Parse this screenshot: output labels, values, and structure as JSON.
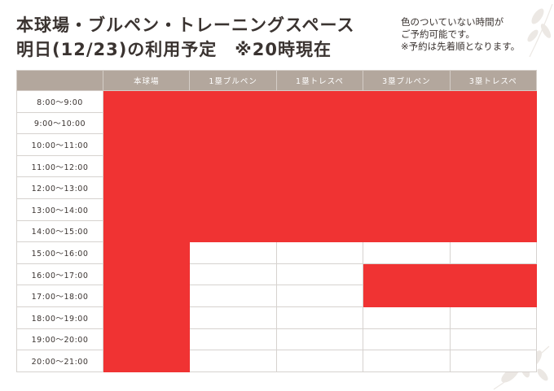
{
  "title": {
    "line1": "本球場・ブルペン・トレーニングスペース",
    "line2": "明日(12/23)の利用予定　※20時現在"
  },
  "note": {
    "line1": "色のついていない時間が",
    "line2": "ご予約可能です。",
    "line3": "※予約は先着順となります。"
  },
  "colors": {
    "reserved": "#f03333",
    "available": "#ffffff",
    "header": "#b3a79d"
  },
  "table": {
    "columns": [
      "本球場",
      "1塁ブルペン",
      "1塁トレスペ",
      "3塁ブルペン",
      "3塁トレスペ"
    ],
    "rows": [
      {
        "time": "8:00～9:00",
        "status": [
          1,
          1,
          1,
          1,
          1
        ]
      },
      {
        "time": "9:00～10:00",
        "status": [
          1,
          1,
          1,
          1,
          1
        ]
      },
      {
        "time": "10:00～11:00",
        "status": [
          1,
          1,
          1,
          1,
          1
        ]
      },
      {
        "time": "11:00～12:00",
        "status": [
          1,
          1,
          1,
          1,
          1
        ]
      },
      {
        "time": "12:00～13:00",
        "status": [
          1,
          1,
          1,
          1,
          1
        ]
      },
      {
        "time": "13:00～14:00",
        "status": [
          1,
          1,
          1,
          1,
          1
        ]
      },
      {
        "time": "14:00～15:00",
        "status": [
          1,
          1,
          1,
          1,
          1
        ]
      },
      {
        "time": "15:00～16:00",
        "status": [
          1,
          0,
          0,
          0,
          0
        ]
      },
      {
        "time": "16:00～17:00",
        "status": [
          1,
          0,
          0,
          1,
          1
        ]
      },
      {
        "time": "17:00～18:00",
        "status": [
          1,
          0,
          0,
          1,
          1
        ]
      },
      {
        "time": "18:00～19:00",
        "status": [
          1,
          0,
          0,
          0,
          0
        ]
      },
      {
        "time": "19:00～20:00",
        "status": [
          1,
          0,
          0,
          0,
          0
        ]
      },
      {
        "time": "20:00～21:00",
        "status": [
          1,
          0,
          0,
          0,
          0
        ]
      }
    ]
  }
}
